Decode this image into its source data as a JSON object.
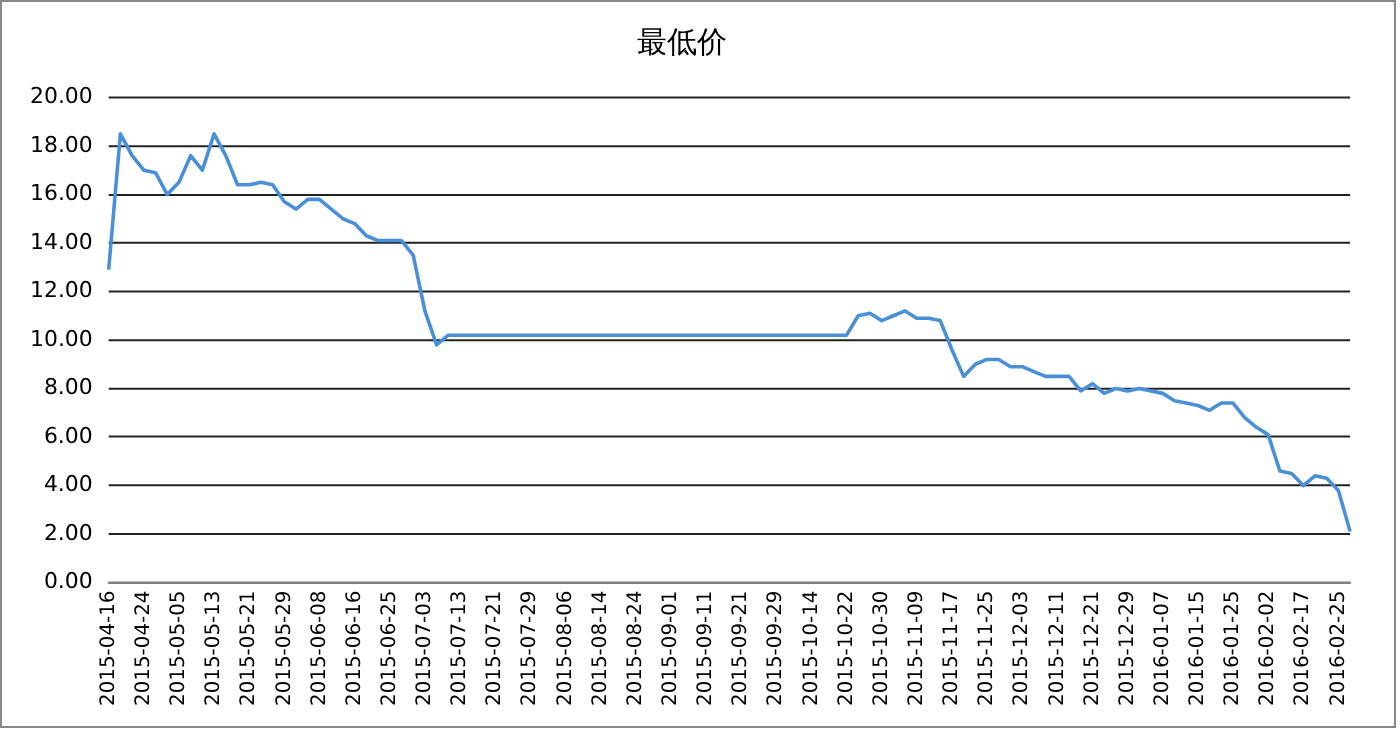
{
  "chart_data": {
    "type": "line",
    "title": "最低价",
    "categories": [
      "2015-04-16",
      null,
      null,
      "2015-04-24",
      null,
      null,
      "2015-05-05",
      null,
      null,
      "2015-05-13",
      null,
      null,
      "2015-05-21",
      null,
      null,
      "2015-05-29",
      null,
      null,
      "2015-06-08",
      null,
      null,
      "2015-06-16",
      null,
      null,
      "2015-06-25",
      null,
      null,
      "2015-07-03",
      null,
      null,
      "2015-07-13",
      null,
      null,
      "2015-07-21",
      null,
      null,
      "2015-07-29",
      null,
      null,
      "2015-08-06",
      null,
      null,
      "2015-08-14",
      null,
      null,
      "2015-08-24",
      null,
      null,
      "2015-09-01",
      null,
      null,
      "2015-09-11",
      null,
      null,
      "2015-09-21",
      null,
      null,
      "2015-09-29",
      null,
      null,
      "2015-10-14",
      null,
      null,
      "2015-10-22",
      null,
      null,
      "2015-10-30",
      null,
      null,
      "2015-11-09",
      null,
      null,
      "2015-11-17",
      null,
      null,
      "2015-11-25",
      null,
      null,
      "2015-12-03",
      null,
      null,
      "2015-12-11",
      null,
      null,
      "2015-12-21",
      null,
      null,
      "2015-12-29",
      null,
      null,
      "2016-01-07",
      null,
      null,
      "2016-01-15",
      null,
      null,
      "2016-01-25",
      null,
      null,
      "2016-02-02",
      null,
      null,
      "2016-02-17",
      null,
      null,
      "2016-02-25",
      null
    ],
    "series": [
      {
        "color": "#4a90d9",
        "values": [
          12.9,
          18.5,
          17.6,
          17.0,
          16.9,
          16.0,
          16.5,
          17.6,
          17.0,
          18.5,
          17.6,
          16.4,
          16.4,
          16.5,
          16.4,
          15.7,
          15.4,
          15.8,
          15.8,
          15.4,
          15.0,
          14.8,
          14.3,
          14.1,
          14.1,
          14.1,
          13.5,
          11.2,
          9.8,
          10.2,
          10.2,
          10.2,
          10.2,
          10.2,
          10.2,
          10.2,
          10.2,
          10.2,
          10.2,
          10.2,
          10.2,
          10.2,
          10.2,
          10.2,
          10.2,
          10.2,
          10.2,
          10.2,
          10.2,
          10.2,
          10.2,
          10.2,
          10.2,
          10.2,
          10.2,
          10.2,
          10.2,
          10.2,
          10.2,
          10.2,
          10.2,
          10.2,
          10.2,
          10.2,
          11.0,
          11.1,
          10.8,
          11.0,
          11.2,
          10.9,
          10.9,
          10.8,
          9.6,
          8.5,
          9.0,
          9.2,
          9.2,
          8.9,
          8.9,
          8.7,
          8.5,
          8.5,
          8.5,
          7.9,
          8.2,
          7.8,
          8.0,
          7.9,
          8.0,
          7.9,
          7.8,
          7.5,
          7.4,
          7.3,
          7.1,
          7.4,
          7.4,
          6.8,
          6.4,
          6.1,
          4.6,
          4.5,
          4.0,
          4.4,
          4.3,
          3.8,
          2.1
        ]
      }
    ],
    "ylim": [
      0,
      20
    ],
    "yticks": [
      {
        "value": 0,
        "label": "0.00"
      },
      {
        "value": 2,
        "label": "2.00"
      },
      {
        "value": 4,
        "label": "4.00"
      },
      {
        "value": 6,
        "label": "6.00"
      },
      {
        "value": 8,
        "label": "8.00"
      },
      {
        "value": 10,
        "label": "10.00"
      },
      {
        "value": 12,
        "label": "12.00"
      },
      {
        "value": 14,
        "label": "14.00"
      },
      {
        "value": 16,
        "label": "16.00"
      },
      {
        "value": 18,
        "label": "18.00"
      },
      {
        "value": 20,
        "label": "20.00"
      }
    ],
    "grid": "y",
    "marker": "none",
    "legend": false
  }
}
